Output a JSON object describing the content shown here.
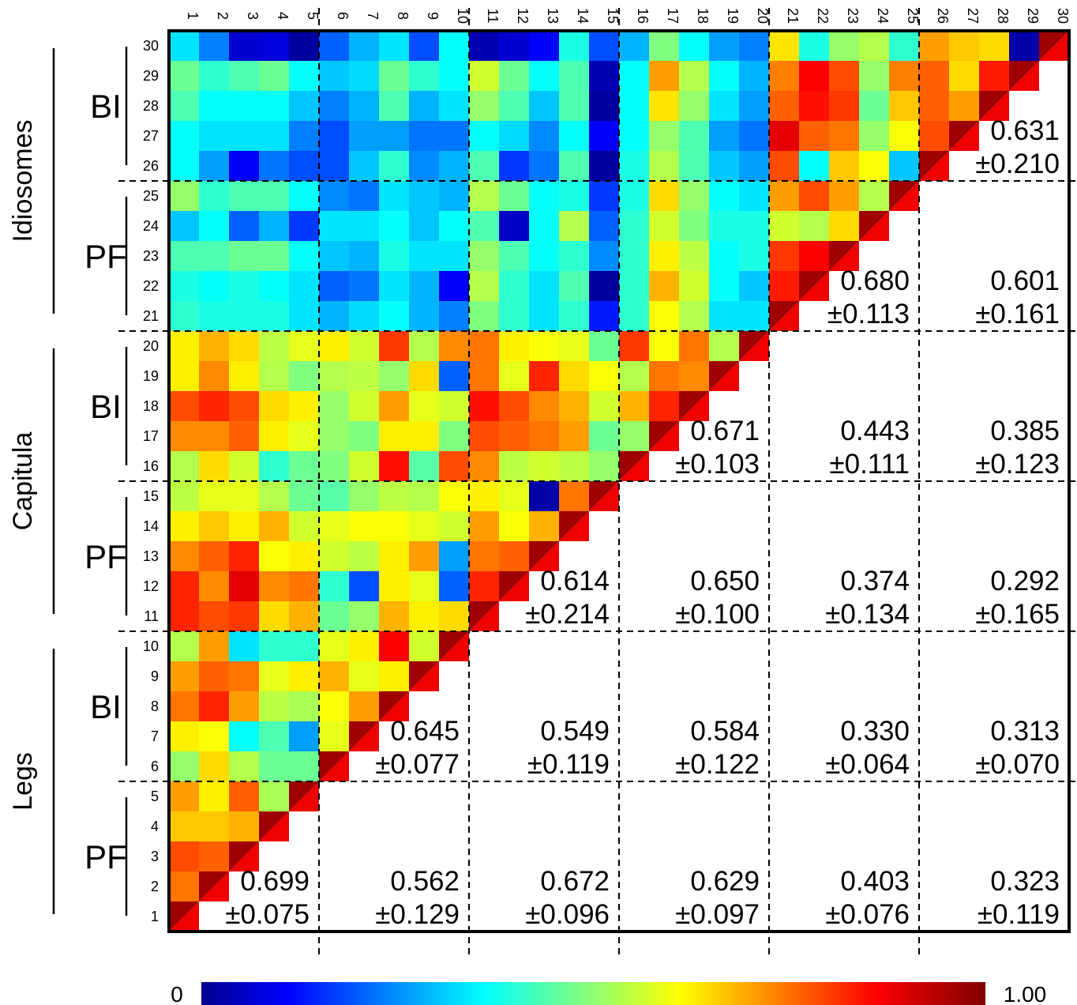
{
  "chart_data": {
    "type": "heatmap",
    "n": 30,
    "x_ticks": [
      "1",
      "2",
      "3",
      "4",
      "5",
      "6",
      "7",
      "8",
      "9",
      "10",
      "11",
      "12",
      "13",
      "14",
      "15",
      "16",
      "17",
      "18",
      "19",
      "20",
      "21",
      "22",
      "23",
      "24",
      "25",
      "26",
      "27",
      "28",
      "29",
      "30"
    ],
    "y_ticks": [
      "1",
      "2",
      "3",
      "4",
      "5",
      "6",
      "7",
      "8",
      "9",
      "10",
      "11",
      "12",
      "13",
      "14",
      "15",
      "16",
      "17",
      "18",
      "19",
      "20",
      "21",
      "22",
      "23",
      "24",
      "25",
      "26",
      "27",
      "28",
      "29",
      "30"
    ],
    "groups": [
      {
        "label": "Legs",
        "start": 1,
        "end": 10
      },
      {
        "label": "Capitula",
        "start": 11,
        "end": 20
      },
      {
        "label": "Idiosomes",
        "start": 21,
        "end": 30
      }
    ],
    "subgroups": [
      {
        "label": "PF",
        "start": 1,
        "end": 5
      },
      {
        "label": "BI",
        "start": 6,
        "end": 10
      },
      {
        "label": "PF",
        "start": 11,
        "end": 15
      },
      {
        "label": "BI",
        "start": 16,
        "end": 20
      },
      {
        "label": "PF",
        "start": 21,
        "end": 25
      },
      {
        "label": "BI",
        "start": 26,
        "end": 30
      }
    ],
    "colorbar": {
      "min_label": "0",
      "max_label": "1.00",
      "range": [
        0,
        1
      ],
      "colormap": "jet"
    },
    "upper_rows_top_to_bottom": [
      [
        0.35,
        0.25,
        0.08,
        0.09,
        0.03,
        0.22,
        0.3,
        0.35,
        0.2,
        0.38,
        0.05,
        0.08,
        0.12,
        0.4,
        0.2,
        0.3,
        0.5,
        0.38,
        0.28,
        0.25,
        0.65,
        0.4,
        0.52,
        0.55,
        0.42,
        0.72,
        0.68,
        0.66,
        0.04,
        null
      ],
      [
        0.48,
        0.42,
        0.45,
        0.48,
        0.38,
        0.32,
        0.34,
        0.48,
        0.42,
        0.38,
        0.58,
        0.48,
        0.38,
        0.45,
        0.05,
        0.38,
        0.72,
        0.55,
        0.38,
        0.3,
        0.75,
        0.88,
        0.8,
        0.52,
        0.75,
        0.78,
        0.66,
        0.85,
        null,
        null
      ],
      [
        0.45,
        0.38,
        0.38,
        0.38,
        0.32,
        0.25,
        0.3,
        0.45,
        0.3,
        0.35,
        0.52,
        0.45,
        0.32,
        0.45,
        0.03,
        0.38,
        0.65,
        0.52,
        0.35,
        0.28,
        0.78,
        0.86,
        0.82,
        0.48,
        0.68,
        0.78,
        0.72,
        null,
        null,
        null
      ],
      [
        0.38,
        0.35,
        0.35,
        0.35,
        0.25,
        0.2,
        0.28,
        0.28,
        0.24,
        0.24,
        0.38,
        0.34,
        0.26,
        0.38,
        0.12,
        0.38,
        0.52,
        0.45,
        0.28,
        0.24,
        0.9,
        0.78,
        0.76,
        0.52,
        0.62,
        0.8,
        null,
        null,
        null,
        null
      ],
      [
        0.38,
        0.28,
        0.12,
        0.24,
        0.2,
        0.2,
        0.32,
        0.42,
        0.26,
        0.3,
        0.45,
        0.18,
        0.24,
        0.45,
        0.03,
        0.4,
        0.55,
        0.45,
        0.32,
        0.28,
        0.8,
        0.38,
        0.68,
        0.62,
        0.32,
        null,
        null,
        null,
        null,
        null
      ],
      [
        0.52,
        0.42,
        0.45,
        0.45,
        0.38,
        0.26,
        0.24,
        0.35,
        0.32,
        0.3,
        0.55,
        0.48,
        0.38,
        0.4,
        0.18,
        0.4,
        0.66,
        0.52,
        0.38,
        0.35,
        0.72,
        0.8,
        0.72,
        0.55,
        null,
        null,
        null,
        null,
        null,
        null
      ],
      [
        0.32,
        0.38,
        0.22,
        0.3,
        0.18,
        0.35,
        0.35,
        0.38,
        0.32,
        0.38,
        0.45,
        0.07,
        0.38,
        0.55,
        0.22,
        0.42,
        0.58,
        0.5,
        0.4,
        0.4,
        0.58,
        0.55,
        0.66,
        null,
        null,
        null,
        null,
        null,
        null,
        null
      ],
      [
        0.45,
        0.45,
        0.48,
        0.48,
        0.38,
        0.32,
        0.3,
        0.4,
        0.35,
        0.35,
        0.52,
        0.45,
        0.38,
        0.42,
        0.26,
        0.42,
        0.64,
        0.56,
        0.38,
        0.4,
        0.82,
        0.88,
        null,
        null,
        null,
        null,
        null,
        null,
        null,
        null
      ],
      [
        0.4,
        0.38,
        0.4,
        0.38,
        0.35,
        0.22,
        0.24,
        0.35,
        0.3,
        0.12,
        0.55,
        0.42,
        0.35,
        0.45,
        0.03,
        0.42,
        0.7,
        0.58,
        0.38,
        0.32,
        0.85,
        null,
        null,
        null,
        null,
        null,
        null,
        null,
        null,
        null
      ],
      [
        0.42,
        0.4,
        0.4,
        0.4,
        0.35,
        0.3,
        0.34,
        0.38,
        0.3,
        0.25,
        0.5,
        0.42,
        0.35,
        0.42,
        0.15,
        0.42,
        0.62,
        0.55,
        0.35,
        0.35,
        null,
        null,
        null,
        null,
        null,
        null,
        null,
        null,
        null,
        null
      ],
      [
        0.64,
        0.7,
        0.66,
        0.56,
        0.6,
        0.64,
        0.58,
        0.82,
        0.55,
        0.74,
        0.76,
        0.64,
        0.62,
        0.6,
        0.48,
        0.82,
        0.62,
        0.76,
        0.55,
        null,
        null,
        null,
        null,
        null,
        null,
        null,
        null,
        null,
        null,
        null
      ],
      [
        0.64,
        0.74,
        0.64,
        0.55,
        0.5,
        0.55,
        0.56,
        0.52,
        0.66,
        0.22,
        0.76,
        0.6,
        0.84,
        0.66,
        0.62,
        0.55,
        0.76,
        0.74,
        null,
        null,
        null,
        null,
        null,
        null,
        null,
        null,
        null,
        null,
        null,
        null
      ],
      [
        0.8,
        0.84,
        0.8,
        0.66,
        0.64,
        0.52,
        0.58,
        0.72,
        0.6,
        0.58,
        0.86,
        0.8,
        0.74,
        0.7,
        0.58,
        0.7,
        0.84,
        null,
        null,
        null,
        null,
        null,
        null,
        null,
        null,
        null,
        null,
        null,
        null,
        null
      ],
      [
        0.74,
        0.74,
        0.78,
        0.64,
        0.6,
        0.52,
        0.5,
        0.64,
        0.64,
        0.5,
        0.8,
        0.78,
        0.76,
        0.72,
        0.48,
        0.52,
        null,
        null,
        null,
        null,
        null,
        null,
        null,
        null,
        null,
        null,
        null,
        null,
        null,
        null
      ],
      [
        0.55,
        0.66,
        0.58,
        0.42,
        0.48,
        0.5,
        0.58,
        0.86,
        0.46,
        0.8,
        0.74,
        0.56,
        0.58,
        0.56,
        0.52,
        null,
        null,
        null,
        null,
        null,
        null,
        null,
        null,
        null,
        null,
        null,
        null,
        null,
        null,
        null
      ],
      [
        0.56,
        0.6,
        0.6,
        0.55,
        0.48,
        0.46,
        0.52,
        0.56,
        0.55,
        0.62,
        0.64,
        0.6,
        0.04,
        0.76,
        null,
        null,
        null,
        null,
        null,
        null,
        null,
        null,
        null,
        null,
        null,
        null,
        null,
        null,
        null,
        null
      ],
      [
        0.64,
        0.68,
        0.64,
        0.7,
        0.58,
        0.6,
        0.62,
        0.62,
        0.6,
        0.58,
        0.72,
        0.62,
        0.7,
        null,
        null,
        null,
        null,
        null,
        null,
        null,
        null,
        null,
        null,
        null,
        null,
        null,
        null,
        null,
        null,
        null
      ],
      [
        0.74,
        0.78,
        0.84,
        0.62,
        0.64,
        0.58,
        0.56,
        0.64,
        0.72,
        0.28,
        0.76,
        0.78,
        null,
        null,
        null,
        null,
        null,
        null,
        null,
        null,
        null,
        null,
        null,
        null,
        null,
        null,
        null,
        null,
        null,
        null
      ],
      [
        0.84,
        0.74,
        0.9,
        0.74,
        0.76,
        0.42,
        0.2,
        0.64,
        0.6,
        0.22,
        0.84,
        null,
        null,
        null,
        null,
        null,
        null,
        null,
        null,
        null,
        null,
        null,
        null,
        null,
        null,
        null,
        null,
        null,
        null,
        null
      ],
      [
        0.84,
        0.8,
        0.82,
        0.66,
        0.7,
        0.48,
        0.52,
        0.7,
        0.64,
        0.66,
        null,
        null,
        null,
        null,
        null,
        null,
        null,
        null,
        null,
        null,
        null,
        null,
        null,
        null,
        null,
        null,
        null,
        null,
        null,
        null
      ],
      [
        0.55,
        0.72,
        0.35,
        0.42,
        0.42,
        0.6,
        0.64,
        0.88,
        0.58,
        null,
        null,
        null,
        null,
        null,
        null,
        null,
        null,
        null,
        null,
        null,
        null,
        null,
        null,
        null,
        null,
        null,
        null,
        null,
        null,
        null
      ],
      [
        0.72,
        0.78,
        0.76,
        0.6,
        0.64,
        0.7,
        0.6,
        0.64,
        null,
        null,
        null,
        null,
        null,
        null,
        null,
        null,
        null,
        null,
        null,
        null,
        null,
        null,
        null,
        null,
        null,
        null,
        null,
        null,
        null,
        null
      ],
      [
        0.76,
        0.84,
        0.72,
        0.56,
        0.54,
        0.62,
        0.72,
        null,
        null,
        null,
        null,
        null,
        null,
        null,
        null,
        null,
        null,
        null,
        null,
        null,
        null,
        null,
        null,
        null,
        null,
        null,
        null,
        null,
        null,
        null
      ],
      [
        0.64,
        0.62,
        0.38,
        0.45,
        0.28,
        0.6,
        null,
        null,
        null,
        null,
        null,
        null,
        null,
        null,
        null,
        null,
        null,
        null,
        null,
        null,
        null,
        null,
        null,
        null,
        null,
        null,
        null,
        null,
        null,
        null
      ],
      [
        0.52,
        0.66,
        0.55,
        0.48,
        0.48,
        null,
        null,
        null,
        null,
        null,
        null,
        null,
        null,
        null,
        null,
        null,
        null,
        null,
        null,
        null,
        null,
        null,
        null,
        null,
        null,
        null,
        null,
        null,
        null,
        null
      ],
      [
        0.72,
        0.64,
        0.78,
        0.54,
        null,
        null,
        null,
        null,
        null,
        null,
        null,
        null,
        null,
        null,
        null,
        null,
        null,
        null,
        null,
        null,
        null,
        null,
        null,
        null,
        null,
        null,
        null,
        null,
        null,
        null
      ],
      [
        0.68,
        0.68,
        0.7,
        null,
        null,
        null,
        null,
        null,
        null,
        null,
        null,
        null,
        null,
        null,
        null,
        null,
        null,
        null,
        null,
        null,
        null,
        null,
        null,
        null,
        null,
        null,
        null,
        null,
        null,
        null
      ],
      [
        0.8,
        0.78,
        null,
        null,
        null,
        null,
        null,
        null,
        null,
        null,
        null,
        null,
        null,
        null,
        null,
        null,
        null,
        null,
        null,
        null,
        null,
        null,
        null,
        null,
        null,
        null,
        null,
        null,
        null,
        null
      ],
      [
        0.76,
        null,
        null,
        null,
        null,
        null,
        null,
        null,
        null,
        null,
        null,
        null,
        null,
        null,
        null,
        null,
        null,
        null,
        null,
        null,
        null,
        null,
        null,
        null,
        null,
        null,
        null,
        null,
        null,
        null
      ],
      [
        null,
        null,
        null,
        null,
        null,
        null,
        null,
        null,
        null,
        null,
        null,
        null,
        null,
        null,
        null,
        null,
        null,
        null,
        null,
        null,
        null,
        null,
        null,
        null,
        null,
        null,
        null,
        null,
        null,
        null
      ]
    ],
    "block_stats": [
      {
        "block_col": 1,
        "block_row": 1,
        "mean": "0.699",
        "sd": "±0.075"
      },
      {
        "block_col": 2,
        "block_row": 1,
        "mean": "0.562",
        "sd": "±0.129"
      },
      {
        "block_col": 3,
        "block_row": 1,
        "mean": "0.672",
        "sd": "±0.096"
      },
      {
        "block_col": 4,
        "block_row": 1,
        "mean": "0.629",
        "sd": "±0.097"
      },
      {
        "block_col": 5,
        "block_row": 1,
        "mean": "0.403",
        "sd": "±0.076"
      },
      {
        "block_col": 6,
        "block_row": 1,
        "mean": "0.323",
        "sd": "±0.119"
      },
      {
        "block_col": 2,
        "block_row": 2,
        "mean": "0.645",
        "sd": "±0.077"
      },
      {
        "block_col": 3,
        "block_row": 2,
        "mean": "0.549",
        "sd": "±0.119"
      },
      {
        "block_col": 4,
        "block_row": 2,
        "mean": "0.584",
        "sd": "±0.122"
      },
      {
        "block_col": 5,
        "block_row": 2,
        "mean": "0.330",
        "sd": "±0.064"
      },
      {
        "block_col": 6,
        "block_row": 2,
        "mean": "0.313",
        "sd": "±0.070"
      },
      {
        "block_col": 3,
        "block_row": 3,
        "mean": "0.614",
        "sd": "±0.214"
      },
      {
        "block_col": 4,
        "block_row": 3,
        "mean": "0.650",
        "sd": "±0.100"
      },
      {
        "block_col": 5,
        "block_row": 3,
        "mean": "0.374",
        "sd": "±0.134"
      },
      {
        "block_col": 6,
        "block_row": 3,
        "mean": "0.292",
        "sd": "±0.165"
      },
      {
        "block_col": 4,
        "block_row": 4,
        "mean": "0.671",
        "sd": "±0.103"
      },
      {
        "block_col": 5,
        "block_row": 4,
        "mean": "0.443",
        "sd": "±0.111"
      },
      {
        "block_col": 6,
        "block_row": 4,
        "mean": "0.385",
        "sd": "±0.123"
      },
      {
        "block_col": 5,
        "block_row": 5,
        "mean": "0.680",
        "sd": "±0.113"
      },
      {
        "block_col": 6,
        "block_row": 5,
        "mean": "0.601",
        "sd": "±0.161"
      },
      {
        "block_col": 6,
        "block_row": 6,
        "mean": "0.631",
        "sd": "±0.210"
      }
    ]
  }
}
